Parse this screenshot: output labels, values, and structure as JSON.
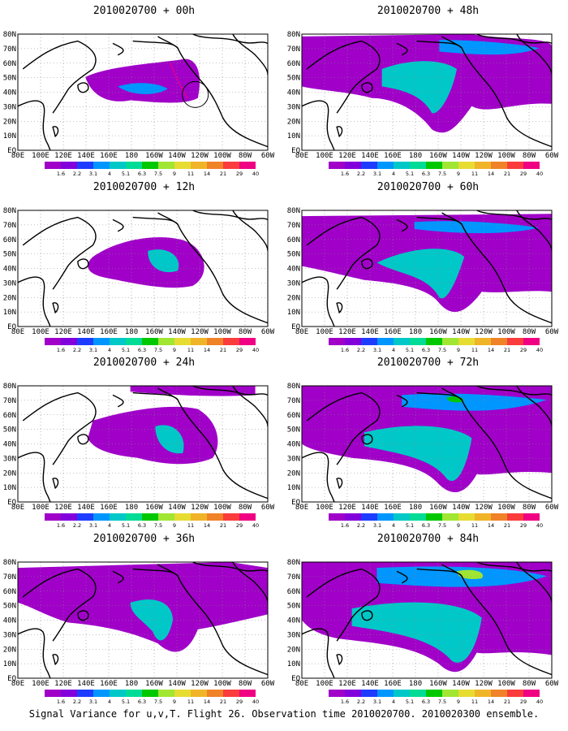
{
  "panels": [
    {
      "title": "2010020700 + 00h",
      "lead": "00h"
    },
    {
      "title": "2010020700 + 48h",
      "lead": "48h"
    },
    {
      "title": "2010020700 + 12h",
      "lead": "12h"
    },
    {
      "title": "2010020700 + 60h",
      "lead": "60h"
    },
    {
      "title": "2010020700 + 24h",
      "lead": "24h"
    },
    {
      "title": "2010020700 + 72h",
      "lead": "72h"
    },
    {
      "title": "2010020700 + 36h",
      "lead": "36h"
    },
    {
      "title": "2010020700 + 84h",
      "lead": "84h"
    }
  ],
  "lat_labels": [
    "80N",
    "70N",
    "60N",
    "50N",
    "40N",
    "30N",
    "20N",
    "10N",
    "EQ"
  ],
  "lon_labels": [
    "80E",
    "100E",
    "120E",
    "140E",
    "160E",
    "180",
    "160W",
    "140W",
    "120W",
    "100W",
    "80W",
    "60W"
  ],
  "colorbar": {
    "labels": [
      "1.6",
      "2.2",
      "3.1",
      "4",
      "5.1",
      "6.3",
      "7.5",
      "9",
      "11",
      "14",
      "21",
      "29",
      "40"
    ],
    "colors": [
      "#a000c8",
      "#8200dc",
      "#1e3cff",
      "#0096ff",
      "#00c8c8",
      "#00dc96",
      "#00c800",
      "#a0e632",
      "#e6dc32",
      "#f0b428",
      "#f08228",
      "#fa3c3c",
      "#f00082"
    ]
  },
  "caption": "Signal Variance for u,v,T. Flight 26. Observation time 2010020700. 2010020300 ensemble."
}
